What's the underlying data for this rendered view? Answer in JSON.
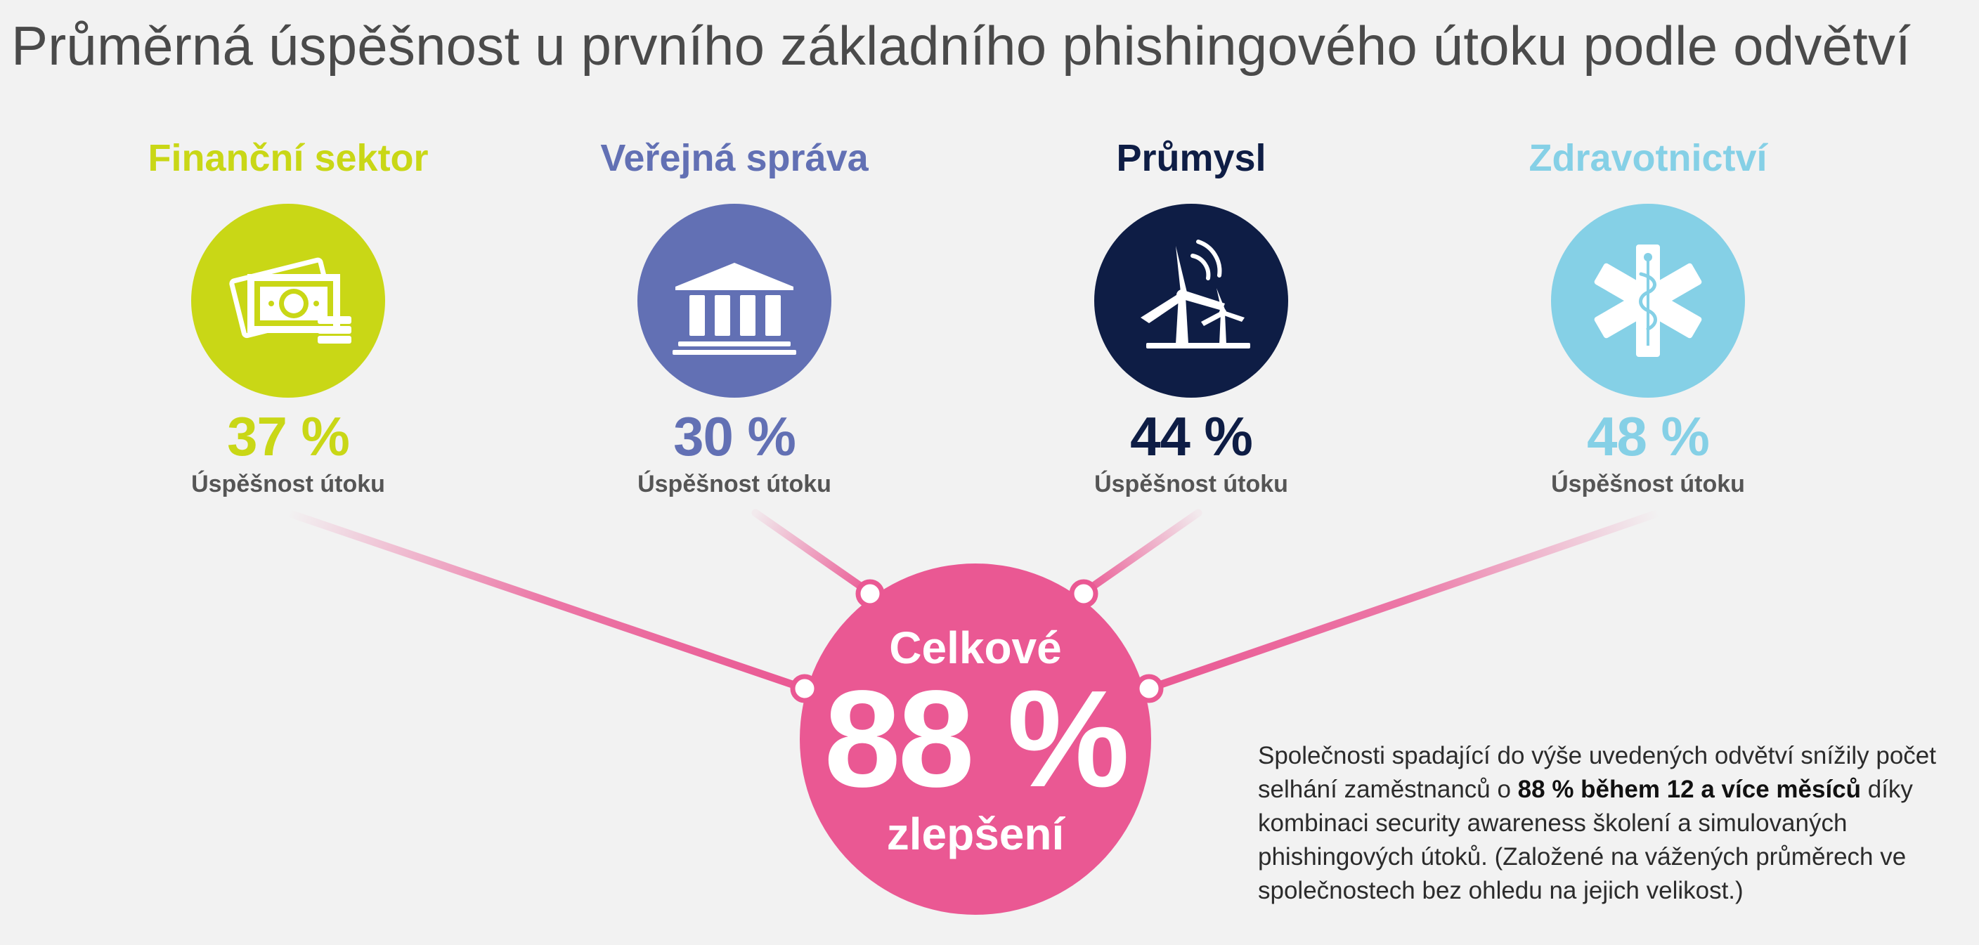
{
  "title": "Průměrná úspěšnost u prvního základního phishingového útoku podle odvětví",
  "chart_data": {
    "type": "infographic",
    "categories": [
      "Finanční sektor",
      "Veřejná správa",
      "Průmysl",
      "Zdravotnictví"
    ],
    "values": [
      37,
      30,
      44,
      48
    ],
    "value_labels": [
      "37 %",
      "30 %",
      "44 %",
      "48 %"
    ],
    "value_caption": "Úspěšnost útoku",
    "colors": [
      "#c9d716",
      "#6270b4",
      "#0e1d45",
      "#85d0e6"
    ],
    "icons": [
      "money-icon",
      "government-building-icon",
      "wind-turbine-icon",
      "medical-star-icon"
    ],
    "overall": {
      "label_top": "Celkové",
      "value": 88,
      "value_label": "88 %",
      "label_bottom": "zlepšení",
      "color": "#ea5893"
    }
  },
  "note": {
    "text_before": "Společnosti spadající do výše uvedených odvětví snížily počet selhání zaměstnanců o ",
    "text_bold": "88 % během 12 a více měsíců",
    "text_after": " díky kombinaci security awareness školení a simulovaných phishingových útoků. (Založené na vážených průměrech ve společnostech bez ohledu na jejich velikost.)"
  }
}
